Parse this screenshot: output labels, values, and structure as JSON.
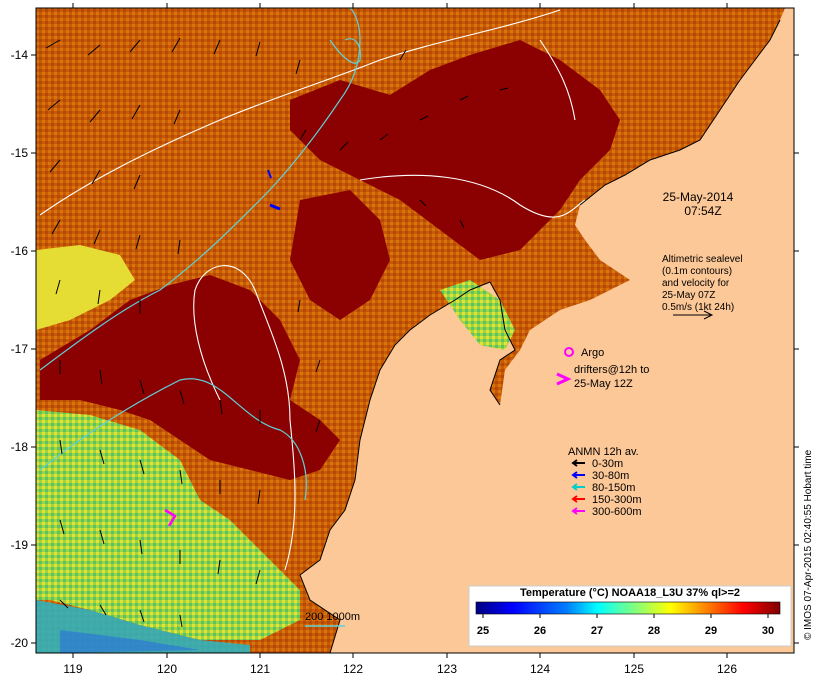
{
  "map": {
    "date_label": "25-May-2014",
    "time_label": "07:54Z",
    "x_ticks": [
      "119",
      "120",
      "121",
      "122",
      "123",
      "124",
      "125",
      "126"
    ],
    "y_ticks": [
      "-14",
      "-15",
      "-16",
      "-17",
      "-18",
      "-19",
      "-20"
    ],
    "altimetry_lines": [
      "Altimetric sealevel",
      "(0.1m contours)",
      "and velocity for",
      "25-May 07Z",
      "0.5m/s (1kt 24h)"
    ],
    "argo_label": "Argo",
    "drifters_lines": [
      "drifters@12h to",
      "25-May 12Z"
    ],
    "anmn_title": "ANMN 12h av.",
    "anmn_items": [
      {
        "label": "0-30m",
        "color": "#000000"
      },
      {
        "label": "30-80m",
        "color": "#0000ff"
      },
      {
        "label": "80-150m",
        "color": "#00cccc"
      },
      {
        "label": "150-300m",
        "color": "#ff0000"
      },
      {
        "label": "300-600m",
        "color": "#ff00ff"
      }
    ],
    "depth_label": "200  1000m",
    "colorbar_title": "Temperature (°C) NOAA18_L3U 37% ql>=2",
    "colorbar_ticks": [
      "25",
      "26",
      "27",
      "28",
      "29",
      "30"
    ],
    "colorbar_colors": [
      "#00007f",
      "#0000ff",
      "#007fff",
      "#00ffff",
      "#7fff7f",
      "#ffff00",
      "#ff7f00",
      "#ff0000",
      "#7f0000"
    ],
    "credit": "© IMOS 07-Apr-2015 02:40:55 Hobart time",
    "colors": {
      "land": "#fdc897",
      "sst_warm": "#8b0000",
      "sst_orange": "#d56a0a",
      "sst_yellow": "#e8e03a",
      "sst_green": "#7fd13a",
      "sst_cyan": "#27b8c8",
      "argo": "#ff00ff"
    }
  }
}
